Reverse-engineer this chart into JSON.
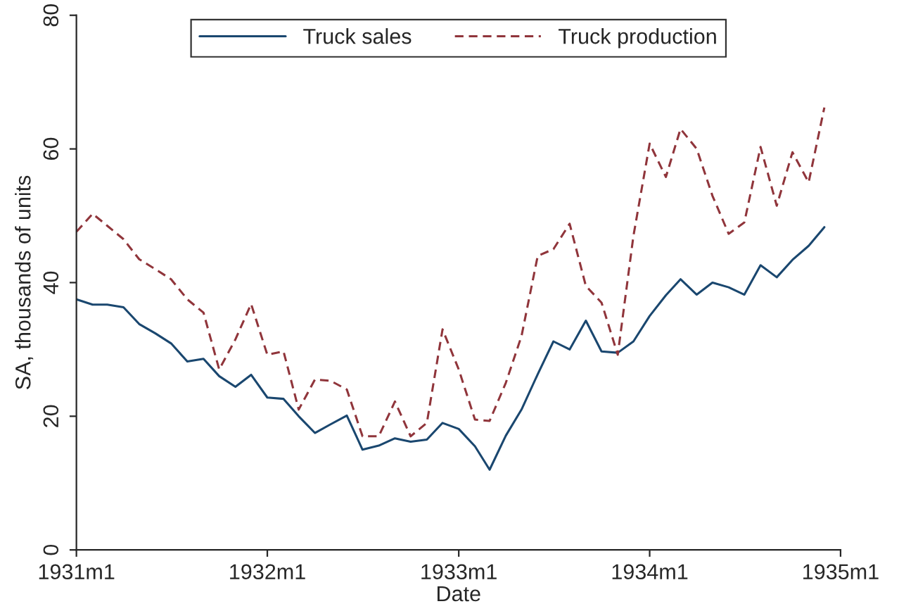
{
  "chart_data": {
    "type": "line",
    "xlabel": "Date",
    "ylabel": "SA, thousands of units",
    "x": [
      "1931-01",
      "1931-02",
      "1931-03",
      "1931-04",
      "1931-05",
      "1931-06",
      "1931-07",
      "1931-08",
      "1931-09",
      "1931-10",
      "1931-11",
      "1931-12",
      "1932-01",
      "1932-02",
      "1932-03",
      "1932-04",
      "1932-05",
      "1932-06",
      "1932-07",
      "1932-08",
      "1932-09",
      "1932-10",
      "1932-11",
      "1932-12",
      "1933-01",
      "1933-02",
      "1933-03",
      "1933-04",
      "1933-05",
      "1933-06",
      "1933-07",
      "1933-08",
      "1933-09",
      "1933-10",
      "1933-11",
      "1933-12",
      "1934-01",
      "1934-02",
      "1934-03",
      "1934-04",
      "1934-05",
      "1934-06",
      "1934-07",
      "1934-08",
      "1934-09",
      "1934-10",
      "1934-11",
      "1934-12"
    ],
    "series": [
      {
        "name": "Truck sales",
        "color": "#1a476f",
        "line_style": "solid",
        "values": [
          37.5,
          36.7,
          36.7,
          36.3,
          33.8,
          32.4,
          30.9,
          28.2,
          28.6,
          26.0,
          24.4,
          26.2,
          22.8,
          22.6,
          20.0,
          17.5,
          18.8,
          20.1,
          15.0,
          15.6,
          16.7,
          16.2,
          16.5,
          19.0,
          18.1,
          15.5,
          12.0,
          17.1,
          21.0,
          26.3,
          31.2,
          30.0,
          34.3,
          29.7,
          29.5,
          31.2,
          35.0,
          38.1,
          40.5,
          38.2,
          40.0,
          39.3,
          38.2,
          42.6,
          40.8,
          43.4,
          45.5,
          48.3
        ]
      },
      {
        "name": "Truck production",
        "color": "#90353b",
        "line_style": "dashed",
        "values": [
          47.6,
          50.3,
          48.5,
          46.5,
          43.5,
          42.0,
          40.5,
          37.5,
          35.5,
          27.0,
          31.5,
          36.8,
          29.2,
          29.7,
          21.0,
          25.5,
          25.3,
          24.0,
          17.0,
          17.0,
          22.2,
          17.0,
          19.0,
          33.0,
          27.0,
          19.5,
          19.3,
          25.0,
          32.0,
          44.0,
          45.0,
          48.8,
          39.5,
          37.0,
          29.2,
          47.0,
          60.8,
          55.8,
          63.0,
          60.0,
          53.0,
          47.3,
          49.0,
          60.3,
          51.5,
          59.5,
          55.0,
          66.2
        ]
      }
    ],
    "xlim": [
      "1931-01",
      "1935-01"
    ],
    "xticks": [
      {
        "value": "1931-01",
        "label": "1931m1"
      },
      {
        "value": "1932-01",
        "label": "1932m1"
      },
      {
        "value": "1933-01",
        "label": "1933m1"
      },
      {
        "value": "1934-01",
        "label": "1934m1"
      },
      {
        "value": "1935-01",
        "label": "1935m1"
      }
    ],
    "ylim": [
      0,
      80
    ],
    "yticks": [
      0,
      20,
      40,
      60,
      80
    ],
    "grid": false,
    "legend": "top",
    "marker": "none"
  }
}
